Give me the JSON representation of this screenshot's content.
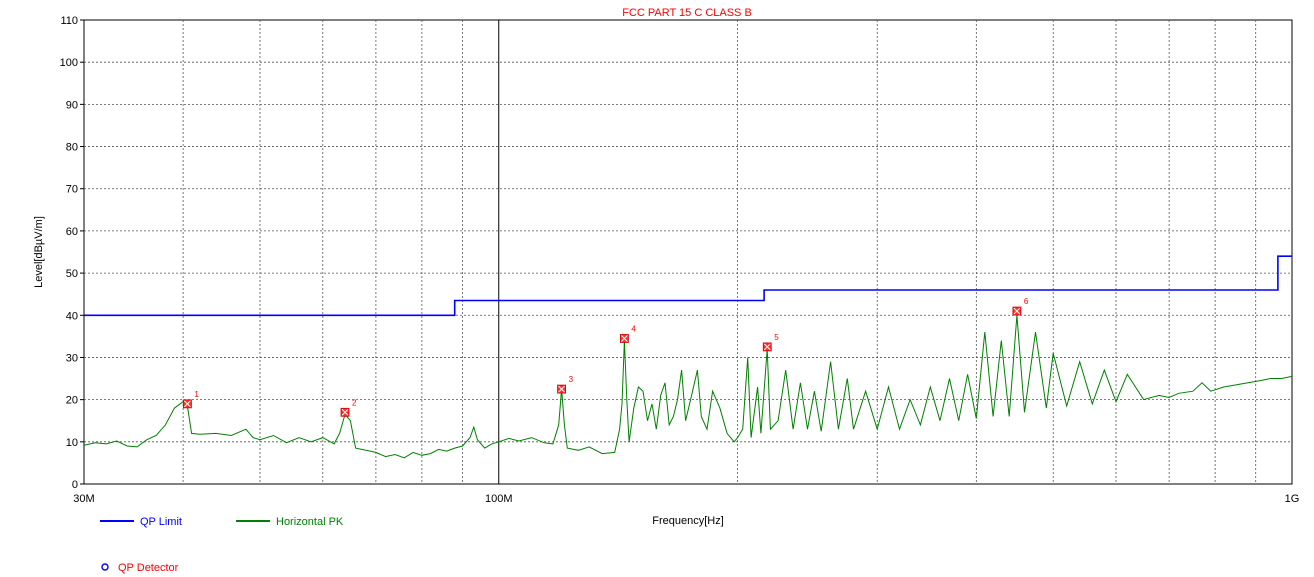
{
  "chart_data": {
    "type": "line",
    "title": "FCC PART 15 C CLASS B",
    "xlabel": "Frequency[Hz]",
    "ylabel": "Level[dBµV/m]",
    "x_scale": "log",
    "xlim": [
      30000000,
      1000000000
    ],
    "ylim": [
      0,
      110
    ],
    "y_ticks": [
      0,
      10,
      20,
      30,
      40,
      50,
      60,
      70,
      80,
      90,
      100,
      110
    ],
    "x_tick_labels": [
      {
        "value": 30000000,
        "label": "30M"
      },
      {
        "value": 100000000,
        "label": "100M"
      },
      {
        "value": 1000000000,
        "label": "1G"
      }
    ],
    "x_minor_lines": [
      40000000,
      50000000,
      60000000,
      70000000,
      80000000,
      90000000,
      200000000,
      300000000,
      400000000,
      500000000,
      600000000,
      700000000,
      800000000,
      900000000
    ],
    "grid": true,
    "series": [
      {
        "name": "QP Limit",
        "color": "#0000ff",
        "step": true,
        "points": [
          [
            30000000,
            40
          ],
          [
            88000000,
            40
          ],
          [
            88000000,
            43.5
          ],
          [
            216000000,
            43.5
          ],
          [
            216000000,
            46
          ],
          [
            960000000,
            46
          ],
          [
            960000000,
            54
          ],
          [
            1000000000,
            54
          ]
        ]
      },
      {
        "name": "Horizontal PK",
        "color": "#008000",
        "points": [
          [
            30000000,
            9.2
          ],
          [
            31000000,
            9.8
          ],
          [
            32000000,
            9.5
          ],
          [
            33000000,
            10.2
          ],
          [
            34000000,
            9.0
          ],
          [
            35000000,
            8.8
          ],
          [
            36000000,
            10.5
          ],
          [
            37000000,
            11.5
          ],
          [
            38000000,
            14
          ],
          [
            39000000,
            18
          ],
          [
            40000000,
            19.5
          ],
          [
            40500000,
            18.5
          ],
          [
            41000000,
            12
          ],
          [
            42000000,
            11.8
          ],
          [
            44000000,
            12
          ],
          [
            46000000,
            11.5
          ],
          [
            48000000,
            13
          ],
          [
            49000000,
            11
          ],
          [
            50000000,
            10.5
          ],
          [
            52000000,
            11.5
          ],
          [
            54000000,
            9.8
          ],
          [
            56000000,
            11
          ],
          [
            58000000,
            10
          ],
          [
            60000000,
            11
          ],
          [
            62000000,
            9.5
          ],
          [
            63000000,
            12
          ],
          [
            64000000,
            16.5
          ],
          [
            65000000,
            15
          ],
          [
            66000000,
            8.5
          ],
          [
            68000000,
            8
          ],
          [
            70000000,
            7.5
          ],
          [
            72000000,
            6.5
          ],
          [
            74000000,
            7
          ],
          [
            76000000,
            6.2
          ],
          [
            78000000,
            7.5
          ],
          [
            80000000,
            6.8
          ],
          [
            82000000,
            7.2
          ],
          [
            84000000,
            8.2
          ],
          [
            86000000,
            7.8
          ],
          [
            88000000,
            8.5
          ],
          [
            90000000,
            9
          ],
          [
            92000000,
            11
          ],
          [
            93000000,
            13.5
          ],
          [
            94000000,
            10.5
          ],
          [
            96000000,
            8.5
          ],
          [
            98000000,
            9.5
          ],
          [
            100000000,
            10
          ],
          [
            103000000,
            10.8
          ],
          [
            106000000,
            10.2
          ],
          [
            110000000,
            11
          ],
          [
            114000000,
            9.8
          ],
          [
            117000000,
            9.5
          ],
          [
            119000000,
            14
          ],
          [
            120000000,
            22.5
          ],
          [
            121000000,
            14
          ],
          [
            122000000,
            8.5
          ],
          [
            126000000,
            8
          ],
          [
            130000000,
            8.8
          ],
          [
            135000000,
            7.2
          ],
          [
            140000000,
            7.5
          ],
          [
            142000000,
            13
          ],
          [
            143000000,
            19
          ],
          [
            144000000,
            34
          ],
          [
            145000000,
            20
          ],
          [
            146000000,
            10
          ],
          [
            148000000,
            18
          ],
          [
            150000000,
            23
          ],
          [
            152000000,
            22
          ],
          [
            154000000,
            15
          ],
          [
            156000000,
            19
          ],
          [
            158000000,
            13
          ],
          [
            160000000,
            21
          ],
          [
            162000000,
            24
          ],
          [
            164000000,
            14
          ],
          [
            166000000,
            16
          ],
          [
            168000000,
            20
          ],
          [
            170000000,
            27
          ],
          [
            172000000,
            15
          ],
          [
            175000000,
            21
          ],
          [
            178000000,
            27
          ],
          [
            180000000,
            16
          ],
          [
            183000000,
            13
          ],
          [
            186000000,
            22
          ],
          [
            190000000,
            18
          ],
          [
            194000000,
            12
          ],
          [
            198000000,
            10
          ],
          [
            200000000,
            11
          ],
          [
            203000000,
            13
          ],
          [
            206000000,
            30
          ],
          [
            208000000,
            11
          ],
          [
            212000000,
            23
          ],
          [
            214000000,
            12
          ],
          [
            218000000,
            32
          ],
          [
            220000000,
            13
          ],
          [
            225000000,
            15
          ],
          [
            230000000,
            27
          ],
          [
            235000000,
            13
          ],
          [
            240000000,
            24
          ],
          [
            245000000,
            13
          ],
          [
            250000000,
            22
          ],
          [
            255000000,
            12.5
          ],
          [
            262000000,
            29
          ],
          [
            268000000,
            13
          ],
          [
            275000000,
            25
          ],
          [
            280000000,
            13
          ],
          [
            290000000,
            22
          ],
          [
            300000000,
            13
          ],
          [
            310000000,
            23
          ],
          [
            320000000,
            13
          ],
          [
            330000000,
            20
          ],
          [
            340000000,
            14
          ],
          [
            350000000,
            23
          ],
          [
            360000000,
            15
          ],
          [
            370000000,
            25
          ],
          [
            380000000,
            15
          ],
          [
            390000000,
            26
          ],
          [
            400000000,
            15.5
          ],
          [
            410000000,
            36
          ],
          [
            420000000,
            16
          ],
          [
            430000000,
            34
          ],
          [
            440000000,
            16
          ],
          [
            450000000,
            40
          ],
          [
            460000000,
            17
          ],
          [
            475000000,
            36
          ],
          [
            490000000,
            18
          ],
          [
            500000000,
            31
          ],
          [
            520000000,
            18.5
          ],
          [
            540000000,
            29
          ],
          [
            560000000,
            19
          ],
          [
            580000000,
            27
          ],
          [
            600000000,
            19.5
          ],
          [
            620000000,
            26
          ],
          [
            650000000,
            20
          ],
          [
            680000000,
            21
          ],
          [
            700000000,
            20.5
          ],
          [
            720000000,
            21.5
          ],
          [
            750000000,
            22
          ],
          [
            770000000,
            24
          ],
          [
            790000000,
            22
          ],
          [
            820000000,
            23
          ],
          [
            850000000,
            23.5
          ],
          [
            880000000,
            24
          ],
          [
            910000000,
            24.5
          ],
          [
            940000000,
            25
          ],
          [
            970000000,
            25
          ],
          [
            1000000000,
            25.5
          ]
        ]
      }
    ],
    "markers": [
      {
        "label": "1",
        "x": 40500000,
        "y": 19
      },
      {
        "label": "2",
        "x": 64000000,
        "y": 17
      },
      {
        "label": "3",
        "x": 120000000,
        "y": 22.5
      },
      {
        "label": "4",
        "x": 144000000,
        "y": 34.5
      },
      {
        "label": "5",
        "x": 218000000,
        "y": 32.5
      },
      {
        "label": "6",
        "x": 450000000,
        "y": 41
      }
    ],
    "legend": [
      {
        "name": "QP Limit",
        "color": "#0000ff",
        "text_color": "#0000ff",
        "symbol": "line"
      },
      {
        "name": "Horizontal PK",
        "color": "#008000",
        "text_color": "#008000",
        "symbol": "line"
      },
      {
        "name": "QP Detector",
        "color": "#0000ff",
        "text_color": "#ff0000",
        "symbol": "circle"
      }
    ],
    "colors": {
      "grid": "#555555",
      "marker": "#ff0000",
      "title": "#ff0000"
    }
  }
}
